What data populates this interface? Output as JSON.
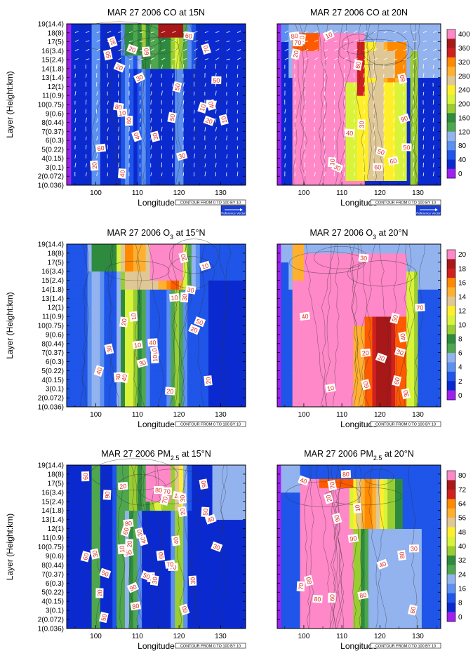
{
  "figure": {
    "y_axis_label": "Layer (Height:km)",
    "x_axis_label": "Longitude",
    "contour_note": "CONTOUR FROM 0 TO 100 BY 10",
    "reference_vector_label": "Reference Vector",
    "y_ticks": [
      "1(0.036)",
      "2(0.072)",
      "3(0.1)",
      "4(0.15)",
      "5(0.22)",
      "6(0.3)",
      "7(0.37)",
      "8(0.44)",
      "9(0.6)",
      "10(0.75)",
      "11(0.9)",
      "12(1)",
      "13(1.4)",
      "14(1.8)",
      "15(2.4)",
      "16(3.4)",
      "17(5)",
      "18(8)",
      "19(14.4)"
    ],
    "x_ticks": [
      "100",
      "110",
      "120",
      "130"
    ]
  },
  "colorbars": [
    {
      "labels": [
        "400",
        "360",
        "320",
        "280",
        "240",
        "200",
        "160",
        "120",
        "80",
        "40",
        "0"
      ]
    },
    {
      "labels": [
        "20",
        "18",
        "16",
        "14",
        "12",
        "10",
        "8",
        "6",
        "4",
        "2",
        "0"
      ]
    },
    {
      "labels": [
        "80",
        "72",
        "64",
        "56",
        "48",
        "40",
        "32",
        "24",
        "16",
        "8",
        "0"
      ]
    }
  ],
  "palette": [
    "#a020f0",
    "#0a2ad0",
    "#1f55e8",
    "#5b8ff0",
    "#93b3ef",
    "#4ea64f",
    "#2e8b3e",
    "#9acd32",
    "#d9f23a",
    "#ffef2a",
    "#e0c896",
    "#ffb030",
    "#ff8a00",
    "#ff5a00",
    "#d02020",
    "#a81818",
    "#ff88c8"
  ],
  "chart_data": [
    {
      "type": "heatmap",
      "title": "MAR 27 2006 CO at 15°N",
      "title_main": "MAR 27 2006 CO at 15",
      "title_suffix": "N",
      "species": "CO",
      "latitude": "15°N",
      "xlim": [
        93,
        136
      ],
      "ylim": [
        1,
        19
      ],
      "has_vectors": true,
      "contour_labels": [
        "10",
        "30",
        "20",
        "40",
        "50",
        "60",
        "70",
        "80",
        "50",
        "60",
        "30",
        "20",
        "40",
        "10",
        "50",
        "30",
        "20",
        "20",
        "40",
        "50",
        "10",
        "30",
        "60",
        "60",
        "50"
      ]
    },
    {
      "type": "heatmap",
      "title": "MAR 27 2006 CO at 20°N",
      "title_main": "MAR 27 2006 CO at 20",
      "title_suffix": "N",
      "species": "CO",
      "latitude": "20°N",
      "xlim": [
        93,
        136
      ],
      "ylim": [
        1,
        19
      ],
      "has_vectors": true,
      "colorbar_levels": [
        0,
        40,
        80,
        120,
        160,
        200,
        240,
        280,
        320,
        360,
        400
      ],
      "contour_labels": [
        "10",
        "20",
        "30",
        "50",
        "60",
        "70",
        "90",
        "80",
        "70",
        "50",
        "60",
        "80",
        "40",
        "60",
        "10",
        "60"
      ]
    },
    {
      "type": "heatmap",
      "title": "MAR 27 2006 O3 at 15°N",
      "title_main": "MAR 27 2006 O",
      "title_sub": "3",
      "title_suffix": " at 15°N",
      "species": "O3",
      "latitude": "15°N",
      "xlim": [
        93,
        136
      ],
      "ylim": [
        1,
        19
      ],
      "has_vectors": false,
      "contour_labels": [
        "20",
        "10",
        "30",
        "40",
        "10",
        "50",
        "10",
        "20",
        "30",
        "30",
        "40",
        "20",
        "10",
        "20",
        "30",
        "10",
        "40",
        "10",
        "20",
        "30"
      ]
    },
    {
      "type": "heatmap",
      "title": "MAR 27 2006 O3 at 20°N",
      "title_main": "MAR 27 2006 O",
      "title_sub": "3",
      "title_suffix": " at 20°N",
      "species": "O3",
      "latitude": "20°N",
      "xlim": [
        93,
        136
      ],
      "ylim": [
        1,
        19
      ],
      "has_vectors": false,
      "colorbar_levels": [
        0,
        2,
        4,
        6,
        8,
        10,
        12,
        14,
        16,
        18,
        20
      ],
      "contour_labels": [
        "10",
        "20",
        "30",
        "40",
        "70",
        "60",
        "40",
        "30",
        "50",
        "60",
        "20",
        "30"
      ]
    },
    {
      "type": "heatmap",
      "title": "MAR 27 2006 PM2.5 at 15°N",
      "title_main": "MAR 27 2006 PM",
      "title_sub": "2.5",
      "title_suffix": " at 15°N",
      "species": "PM2.5",
      "latitude": "15°N",
      "xlim": [
        93,
        136
      ],
      "ylim": [
        1,
        19
      ],
      "has_vectors": false,
      "contour_labels": [
        "60",
        "60",
        "80",
        "20",
        "70",
        "80",
        "90",
        "50",
        "90",
        "80",
        "60",
        "50",
        "70",
        "40",
        "80",
        "30",
        "20",
        "30",
        "50",
        "70",
        "10",
        "40",
        "30",
        "60",
        "50",
        "20",
        "10",
        "30",
        "50",
        "60",
        "40",
        "30",
        "20",
        "70",
        "30",
        "90"
      ]
    },
    {
      "type": "heatmap",
      "title": "MAR 27 2006 PM2.5 at 20°N",
      "title_main": "MAR 27 2006 PM",
      "title_sub": "2.5",
      "title_suffix": " at 20°N",
      "species": "PM2.5",
      "latitude": "20°N",
      "xlim": [
        93,
        136
      ],
      "ylim": [
        1,
        19
      ],
      "has_vectors": false,
      "colorbar_levels": [
        0,
        8,
        16,
        24,
        32,
        40,
        48,
        56,
        64,
        72,
        80
      ],
      "contour_labels": [
        "60",
        "90",
        "80",
        "70",
        "80",
        "70",
        "80",
        "40",
        "80",
        "60",
        "90",
        "80",
        "40",
        "20",
        "30",
        "10"
      ]
    }
  ]
}
